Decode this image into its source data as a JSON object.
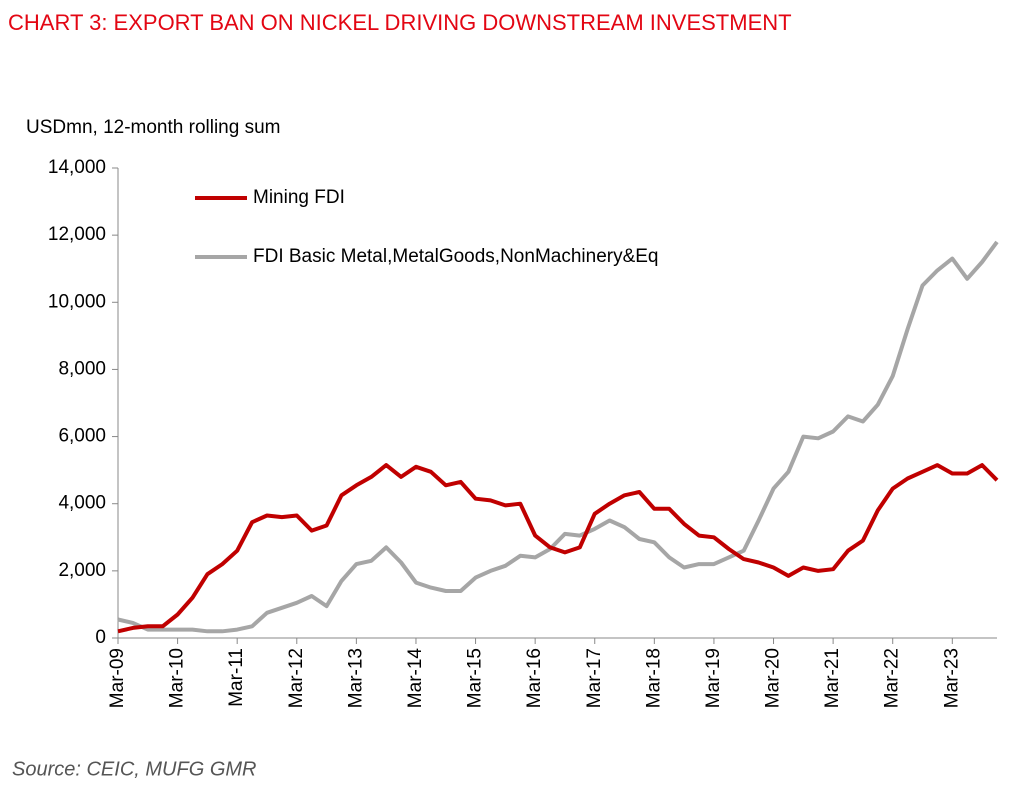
{
  "chart_data": {
    "type": "line",
    "title": "CHART 3: EXPORT BAN ON NICKEL DRIVING DOWNSTREAM INVESTMENT",
    "y_axis_label": "USDmn, 12-month rolling sum",
    "source": "Source: CEIC, MUFG GMR",
    "categories": [
      "Mar-09",
      null,
      null,
      null,
      "Mar-10",
      null,
      null,
      null,
      "Mar-11",
      null,
      null,
      null,
      "Mar-12",
      null,
      null,
      null,
      "Mar-13",
      null,
      null,
      null,
      "Mar-14",
      null,
      null,
      null,
      "Mar-15",
      null,
      null,
      null,
      "Mar-16",
      null,
      null,
      null,
      "Mar-17",
      null,
      null,
      null,
      "Mar-18",
      null,
      null,
      null,
      "Mar-19",
      null,
      null,
      null,
      "Mar-20",
      null,
      null,
      null,
      "Mar-21",
      null,
      null,
      null,
      "Mar-22",
      null,
      null,
      null,
      "Mar-23",
      null,
      null,
      null
    ],
    "series": [
      {
        "name": "Mining FDI",
        "color": "#c00000",
        "values": [
          200,
          300,
          350,
          350,
          700,
          1200,
          1900,
          2200,
          2600,
          3450,
          3650,
          3600,
          3650,
          3200,
          3350,
          4250,
          4550,
          4800,
          5150,
          4800,
          5100,
          4950,
          4550,
          4650,
          4150,
          4100,
          3950,
          4000,
          3050,
          2700,
          2550,
          2700,
          3700,
          4000,
          4250,
          4350,
          3850,
          3850,
          3400,
          3050,
          3000,
          2650,
          2350,
          2250,
          2100,
          1850,
          2100,
          2000,
          2050,
          2600,
          2900,
          3800,
          4450,
          4750,
          4950,
          5150,
          4900,
          4900,
          5150,
          4700
        ]
      },
      {
        "name": "FDI Basic Metal,MetalGoods,NonMachinery&Eq",
        "color": "#a6a6a6",
        "values": [
          550,
          450,
          250,
          250,
          250,
          250,
          200,
          200,
          250,
          350,
          750,
          900,
          1050,
          1250,
          950,
          1700,
          2200,
          2300,
          2700,
          2250,
          1650,
          1500,
          1400,
          1400,
          1800,
          2000,
          2150,
          2450,
          2400,
          2650,
          3100,
          3050,
          3250,
          3500,
          3300,
          2950,
          2850,
          2400,
          2100,
          2200,
          2200,
          2400,
          2600,
          3500,
          4450,
          4950,
          6000,
          5950,
          6150,
          6600,
          6450,
          6950,
          7800,
          9200,
          10500,
          10950,
          11300,
          10700,
          11200,
          11800
        ]
      }
    ],
    "ylim": [
      0,
      14000
    ],
    "yticks": [
      0,
      {
        "value": 2000,
        "label": "2,000"
      },
      {
        "value": 4000,
        "label": "4,000"
      },
      {
        "value": 6000,
        "label": "6,000"
      },
      {
        "value": 8000,
        "label": "8,000"
      },
      {
        "value": 10000,
        "label": "10,000"
      },
      {
        "value": 12000,
        "label": "12,000"
      },
      {
        "value": 14000,
        "label": "14,000"
      }
    ],
    "grid": false,
    "legend": "upper left"
  }
}
